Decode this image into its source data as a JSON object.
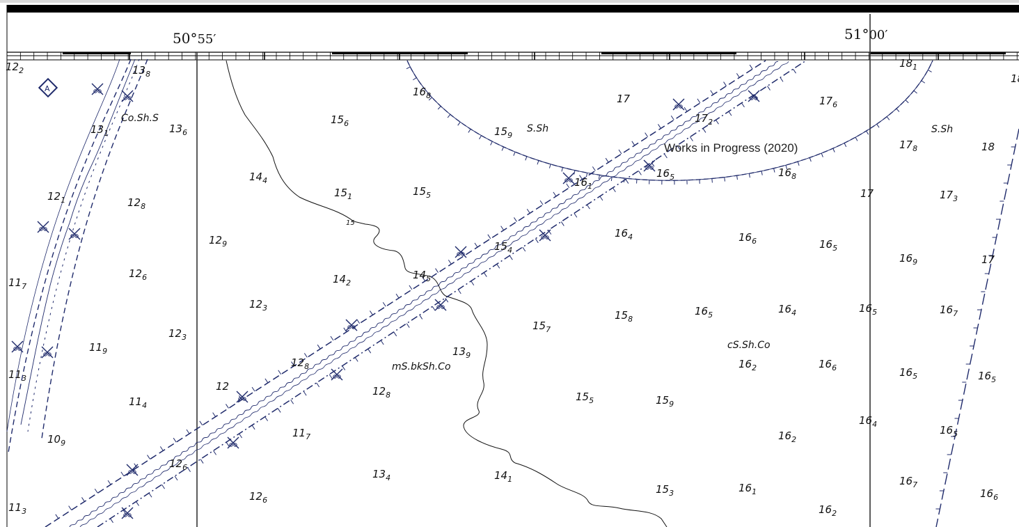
{
  "longitude_labels": [
    {
      "deg": "50°",
      "min": "55′"
    },
    {
      "deg": "51°",
      "min": "00′"
    }
  ],
  "notice": "Works in Progress (2020)",
  "marker_symbol": "A",
  "seabed_labels": [
    "Co.Sh.S",
    "S.Sh",
    "S.Sh",
    "mS.bkSh.Co",
    "cS.Sh.Co"
  ],
  "contour_label": "15",
  "soundings": [
    [
      "12",
      "2"
    ],
    [
      "13",
      "8"
    ],
    [
      "13",
      "1"
    ],
    [
      "13",
      "6"
    ],
    [
      "12",
      "1"
    ],
    [
      "12",
      "8"
    ],
    [
      "11",
      "7"
    ],
    [
      "12",
      "6"
    ],
    [
      "11",
      "3"
    ],
    [
      "11",
      "9"
    ],
    [
      "12",
      "3"
    ],
    [
      "11",
      "4"
    ],
    [
      "10",
      "9"
    ],
    [
      "11",
      "3"
    ],
    [
      "12",
      "9"
    ],
    [
      "14",
      "4"
    ],
    [
      "12",
      "3"
    ],
    [
      "12",
      ""
    ],
    [
      "12",
      "8"
    ],
    [
      "12",
      "6"
    ],
    [
      "11",
      "7"
    ],
    [
      "12",
      "6"
    ],
    [
      "15",
      "6"
    ],
    [
      "15",
      "1"
    ],
    [
      "15",
      "5"
    ],
    [
      "16",
      "8"
    ],
    [
      "15",
      "9"
    ],
    [
      "14",
      "2"
    ],
    [
      "14",
      "5"
    ],
    [
      "13",
      "9"
    ],
    [
      "12",
      "8"
    ],
    [
      "13",
      "4"
    ],
    [
      "15",
      "4"
    ],
    [
      "15",
      "7"
    ],
    [
      "14",
      "1"
    ],
    [
      "17",
      ""
    ],
    [
      "16",
      "1"
    ],
    [
      "16",
      "4"
    ],
    [
      "15",
      "8"
    ],
    [
      "15",
      "5"
    ],
    [
      "15",
      "9"
    ],
    [
      "15",
      "3"
    ],
    [
      "17",
      "2"
    ],
    [
      "16",
      "5"
    ],
    [
      "16",
      "8"
    ],
    [
      "16",
      "6"
    ],
    [
      "16",
      "5"
    ],
    [
      "16",
      "4"
    ],
    [
      "16",
      "2"
    ],
    [
      "16",
      "2"
    ],
    [
      "16",
      "1"
    ],
    [
      "17",
      "6"
    ],
    [
      "16",
      "5"
    ],
    [
      "16",
      "6"
    ],
    [
      "16",
      "2"
    ],
    [
      "17",
      ""
    ],
    [
      "16",
      "5"
    ],
    [
      "16",
      "4"
    ],
    [
      "18",
      "1"
    ],
    [
      "17",
      "8"
    ],
    [
      "18",
      ""
    ],
    [
      "17",
      "3"
    ],
    [
      "16",
      "9"
    ],
    [
      "17",
      ""
    ],
    [
      "16",
      "7"
    ],
    [
      "16",
      "5"
    ],
    [
      "16",
      "5"
    ],
    [
      "16",
      "5"
    ],
    [
      "16",
      "5"
    ],
    [
      "16",
      "7"
    ],
    [
      "16",
      "6"
    ],
    [
      "18",
      ""
    ]
  ]
}
